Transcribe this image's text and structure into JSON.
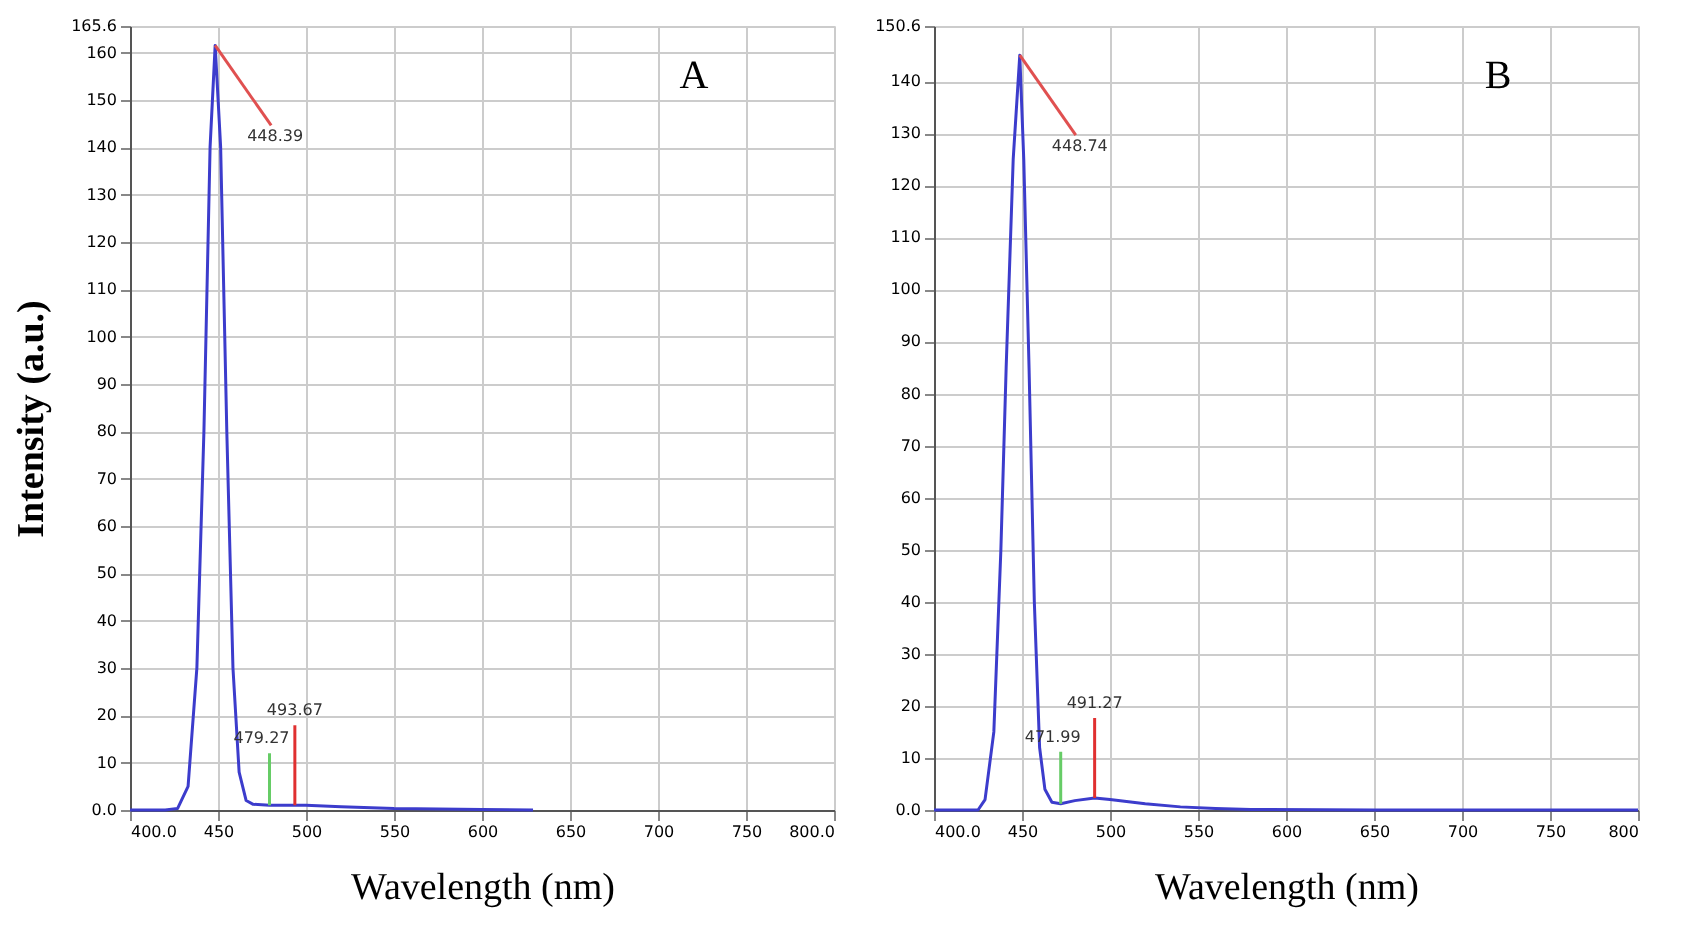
{
  "chart_data": [
    {
      "type": "line",
      "title": "A",
      "xlabel": "Wavelength (nm)",
      "ylabel": "Intensity (a.u.)",
      "x": [
        400,
        420,
        427,
        433,
        438,
        442,
        445.5,
        448.39,
        451.5,
        455,
        458.5,
        462,
        466,
        470,
        479.27,
        493.67,
        500,
        520,
        550,
        600,
        629
      ],
      "series": [
        {
          "color": "#3c3ccc",
          "values": [
            0,
            0,
            0.3,
            5,
            30,
            80,
            140,
            161.5,
            140,
            80,
            30,
            8,
            2,
            1.2,
            1,
            1,
            1,
            0.7,
            0.3,
            0.1,
            0
          ]
        }
      ],
      "xlim": [
        400,
        800
      ],
      "xticks": [
        {
          "value": 400,
          "label": "400.0"
        },
        450,
        500,
        550,
        600,
        650,
        700,
        750,
        {
          "value": 800,
          "label": "800.0"
        }
      ],
      "ylim": [
        0,
        165.6
      ],
      "yticks": [
        {
          "value": 0,
          "label": "0.0"
        },
        10,
        20,
        30,
        40,
        50,
        60,
        70,
        80,
        90,
        100,
        110,
        120,
        130,
        140,
        150,
        160,
        165.6
      ],
      "grid": true,
      "marker": "none",
      "line_style": "solid",
      "annotations": [
        {
          "text": "448.39",
          "x": 448.39,
          "y": 161.5
        },
        {
          "text": "479.27",
          "x": 479.27,
          "y": 1
        },
        {
          "text": "493.67",
          "x": 493.67,
          "y": 1
        }
      ]
    },
    {
      "type": "line",
      "title": "B",
      "xlabel": "Wavelength (nm)",
      "x": [
        400,
        425,
        429,
        434,
        438,
        441,
        445,
        448.74,
        451,
        454,
        457,
        460,
        463,
        467,
        471.99,
        480,
        491.27,
        500,
        520,
        540,
        560,
        580,
        650,
        800
      ],
      "series": [
        {
          "color": "#3c3ccc",
          "values": [
            0,
            0,
            2,
            15,
            50,
            85,
            125,
            145,
            125,
            85,
            40,
            12,
            4,
            1.5,
            1.2,
            1.8,
            2.3,
            2,
            1.2,
            0.6,
            0.3,
            0.1,
            0,
            0
          ]
        }
      ],
      "xlim": [
        400,
        800
      ],
      "xticks": [
        {
          "value": 400,
          "label": "400.0"
        },
        450,
        500,
        550,
        600,
        650,
        700,
        750,
        800
      ],
      "ylim": [
        0,
        150.6
      ],
      "yticks": [
        {
          "value": 0,
          "label": "0.0"
        },
        10,
        20,
        30,
        40,
        50,
        60,
        70,
        80,
        90,
        100,
        110,
        120,
        130,
        140,
        150.6
      ],
      "grid": true,
      "marker": "none",
      "line_style": "solid",
      "annotations": [
        {
          "text": "448.74",
          "x": 448.74,
          "y": 145
        },
        {
          "text": "471.99",
          "x": 471.99,
          "y": 1.2
        },
        {
          "text": "491.27",
          "x": 491.27,
          "y": 2.3
        }
      ]
    }
  ]
}
